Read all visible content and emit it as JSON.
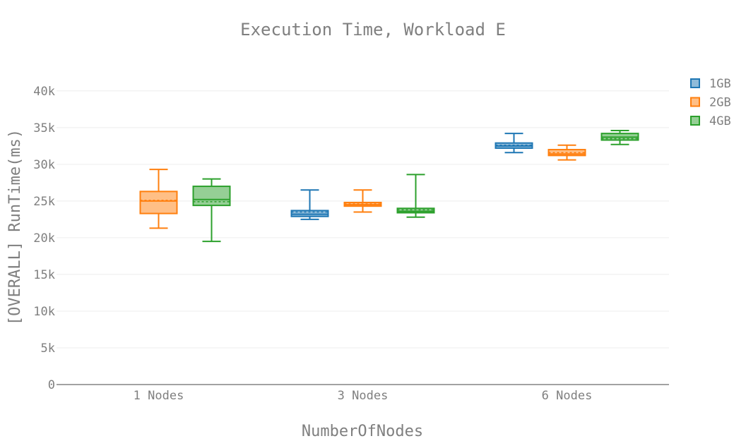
{
  "chart_data": {
    "type": "box",
    "title": "Execution Time, Workload E",
    "xlabel": "NumberOfNodes",
    "ylabel": "[OVERALL] RunTime(ms)",
    "categories": [
      "1 Nodes",
      "3 Nodes",
      "6 Nodes"
    ],
    "ylim": [
      0,
      42000
    ],
    "yticks": [
      0,
      5000,
      10000,
      15000,
      20000,
      25000,
      30000,
      35000,
      40000
    ],
    "ytick_labels": [
      "0",
      "5k",
      "10k",
      "15k",
      "20k",
      "25k",
      "30k",
      "35k",
      "40k"
    ],
    "grid": true,
    "legend": {
      "position": "top-right"
    },
    "series": [
      {
        "name": "1GB",
        "color": "#1f77b4",
        "fill": "rgba(31,119,180,0.5)",
        "boxes": [
          null,
          {
            "category": "3 Nodes",
            "min": 22500,
            "q1": 22900,
            "median": 23200,
            "mean": 23500,
            "q3": 23700,
            "max": 26500
          },
          {
            "category": "6 Nodes",
            "min": 31600,
            "q1": 32200,
            "median": 32500,
            "mean": 32600,
            "q3": 32900,
            "max": 34200
          }
        ]
      },
      {
        "name": "2GB",
        "color": "#ff7f0e",
        "fill": "rgba(255,127,14,0.5)",
        "boxes": [
          {
            "category": "1 Nodes",
            "min": 21300,
            "q1": 23300,
            "median": 25000,
            "mean": 25100,
            "q3": 26300,
            "max": 29300
          },
          {
            "category": "3 Nodes",
            "min": 23500,
            "q1": 24300,
            "median": 24500,
            "mean": 24600,
            "q3": 24800,
            "max": 26500
          },
          {
            "category": "6 Nodes",
            "min": 30600,
            "q1": 31200,
            "median": 31400,
            "mean": 31600,
            "q3": 32000,
            "max": 32600
          }
        ]
      },
      {
        "name": "4GB",
        "color": "#2ca02c",
        "fill": "rgba(44,160,44,0.5)",
        "boxes": [
          {
            "category": "1 Nodes",
            "min": 19500,
            "q1": 24400,
            "median": 25200,
            "mean": 24900,
            "q3": 27000,
            "max": 28000
          },
          {
            "category": "3 Nodes",
            "min": 22800,
            "q1": 23400,
            "median": 23600,
            "mean": 23800,
            "q3": 24000,
            "max": 28600
          },
          {
            "category": "6 Nodes",
            "min": 32700,
            "q1": 33300,
            "median": 33700,
            "mean": 33500,
            "q3": 34200,
            "max": 34600
          }
        ]
      }
    ]
  }
}
